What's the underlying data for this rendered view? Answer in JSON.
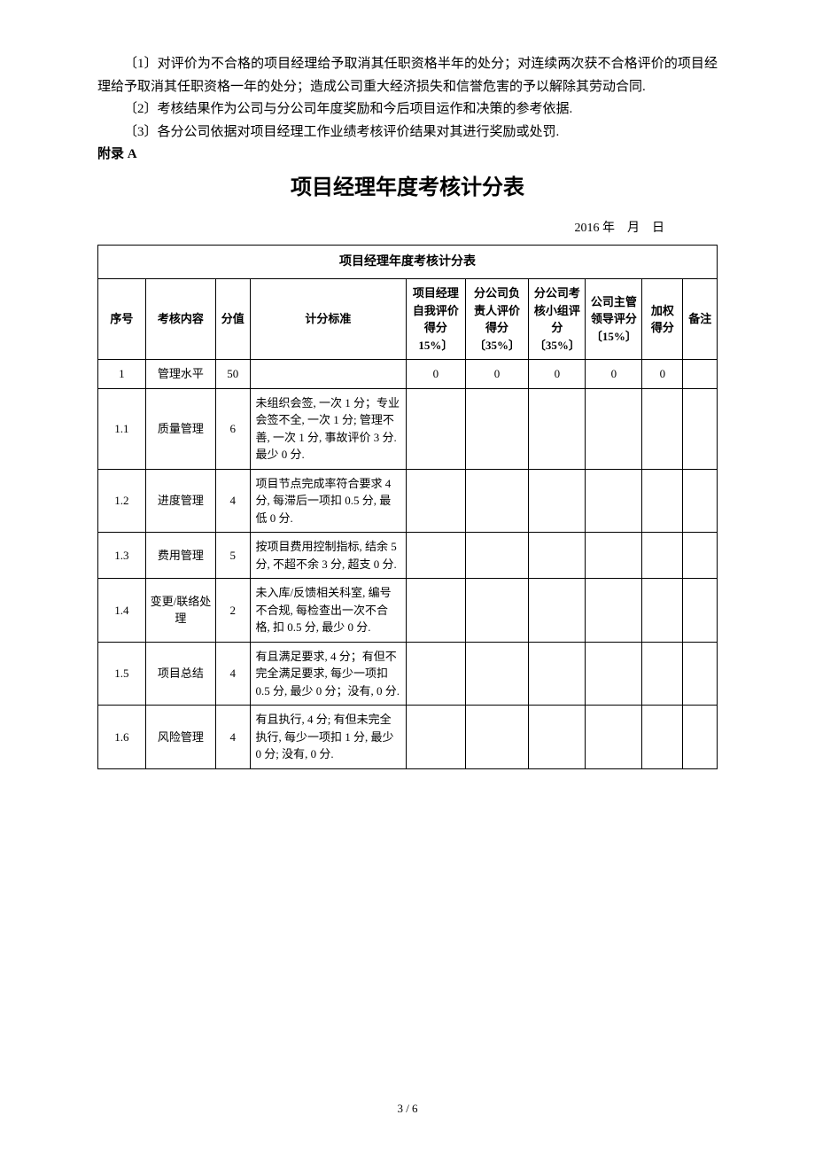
{
  "paragraphs": {
    "p1": "〔1〕对评价为不合格的项目经理给予取消其任职资格半年的处分；对连续两次获不合格评价的项目经理给予取消其任职资格一年的处分；造成公司重大经济损失和信誉危害的予以解除其劳动合同.",
    "p2": "〔2〕考核结果作为公司与分公司年度奖励和今后项目运作和决策的参考依据.",
    "p3": "〔3〕各分公司依据对项目经理工作业绩考核评价结果对其进行奖励或处罚."
  },
  "appendixLabel": "附录 A",
  "mainTitle": "项目经理年度考核计分表",
  "dateLine": "2016 年 月 日",
  "tableCaption": "项目经理年度考核计分表",
  "headers": {
    "seq": "序号",
    "content": "考核内容",
    "scoreMax": "分值",
    "criteria": "计分标准",
    "selfScore": "项目经理自我评价得分 15%〕",
    "branchLeaderScore": "分公司负责人评价得分〔35%〕",
    "branchGroupScore": "分公司考核小组评分〔35%〕",
    "companyLeaderScore": "公司主管领导评分〔15%〕",
    "weightedScore": "加权得分",
    "note": "备注"
  },
  "rows": [
    {
      "seq": "1",
      "content": "管理水平",
      "scoreMax": "50",
      "criteria": "",
      "s1": "0",
      "s2": "0",
      "s3": "0",
      "s4": "0",
      "weighted": "0",
      "note": ""
    },
    {
      "seq": "1.1",
      "content": "质量管理",
      "scoreMax": "6",
      "criteria": "未组织会签, 一次 1 分；专业会签不全, 一次 1 分; 管理不善, 一次 1 分, 事故评价 3 分. 最少 0 分.",
      "s1": "",
      "s2": "",
      "s3": "",
      "s4": "",
      "weighted": "",
      "note": ""
    },
    {
      "seq": "1.2",
      "content": "进度管理",
      "scoreMax": "4",
      "criteria": "项目节点完成率符合要求 4 分, 每滞后一项扣 0.5 分, 最低 0 分.",
      "s1": "",
      "s2": "",
      "s3": "",
      "s4": "",
      "weighted": "",
      "note": ""
    },
    {
      "seq": "1.3",
      "content": "费用管理",
      "scoreMax": "5",
      "criteria": "按项目费用控制指标, 结余 5 分, 不超不余 3 分, 超支 0 分.",
      "s1": "",
      "s2": "",
      "s3": "",
      "s4": "",
      "weighted": "",
      "note": ""
    },
    {
      "seq": "1.4",
      "content": "变更/联络处理",
      "scoreMax": "2",
      "criteria": "未入库/反馈相关科室, 编号不合规, 每检查出一次不合格, 扣 0.5 分, 最少 0 分.",
      "s1": "",
      "s2": "",
      "s3": "",
      "s4": "",
      "weighted": "",
      "note": ""
    },
    {
      "seq": "1.5",
      "content": "项目总结",
      "scoreMax": "4",
      "criteria": "有且满足要求, 4 分；有但不完全满足要求, 每少一项扣 0.5 分, 最少 0 分；没有, 0 分.",
      "s1": "",
      "s2": "",
      "s3": "",
      "s4": "",
      "weighted": "",
      "note": ""
    },
    {
      "seq": "1.6",
      "content": "风险管理",
      "scoreMax": "4",
      "criteria": "有且执行, 4 分; 有但未完全执行, 每少一项扣 1 分, 最少 0 分; 没有, 0 分.",
      "s1": "",
      "s2": "",
      "s3": "",
      "s4": "",
      "weighted": "",
      "note": ""
    }
  ],
  "pageNumber": "3 / 6"
}
